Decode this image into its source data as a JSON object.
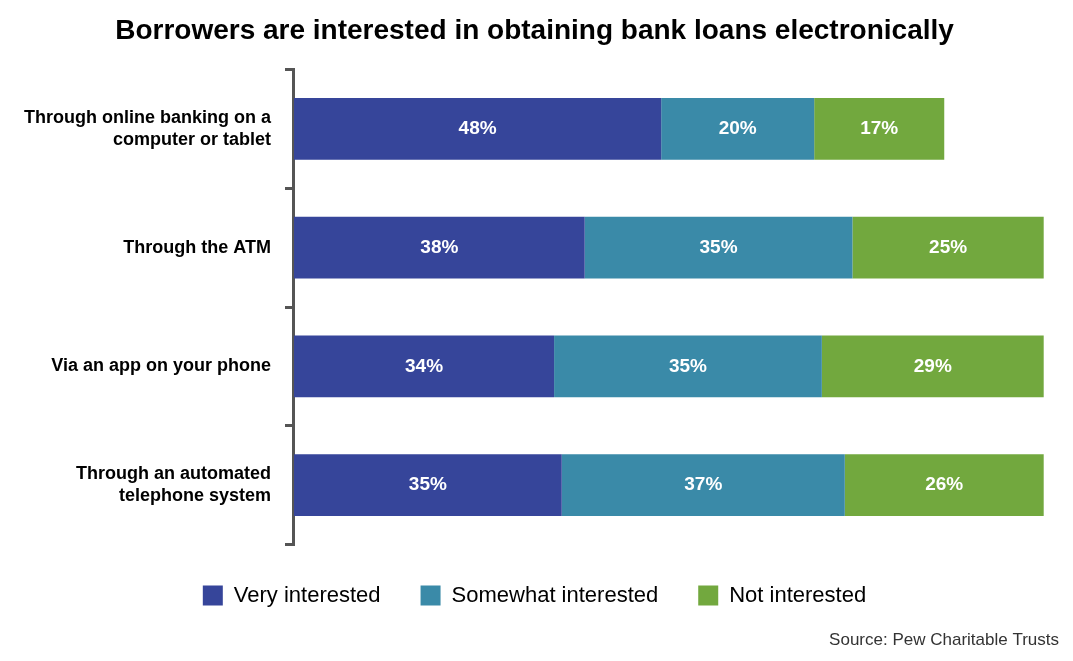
{
  "chart_data": {
    "type": "bar",
    "title": "Borrowers are interested in obtaining bank loans electronically",
    "source": "Source: Pew Charitable Trusts",
    "orientation": "horizontal",
    "stacked": true,
    "data_labels": true,
    "legend": "bottom",
    "grid": false,
    "tick_labels": "y",
    "categories": [
      "Through online banking on a computer or tablet",
      "Through the ATM",
      "Via an app on your phone",
      "Through an automated telephone system"
    ],
    "series": [
      {
        "name": "Very interested",
        "color": "#36459a",
        "values": [
          48,
          38,
          34,
          35
        ],
        "value_labels": [
          "48%",
          "38%",
          "34%",
          "35%"
        ]
      },
      {
        "name": "Somewhat interested",
        "color": "#3a8aa8",
        "values": [
          20,
          35,
          35,
          37
        ],
        "value_labels": [
          "20%",
          "35%",
          "35%",
          "37%"
        ]
      },
      {
        "name": "Not interested",
        "color": "#72a83e",
        "values": [
          17,
          25,
          29,
          26
        ],
        "value_labels": [
          "17%",
          "25%",
          "29%",
          "26%"
        ]
      }
    ],
    "xlim": [
      0,
      100
    ],
    "xticks": [
      0,
      100
    ]
  }
}
